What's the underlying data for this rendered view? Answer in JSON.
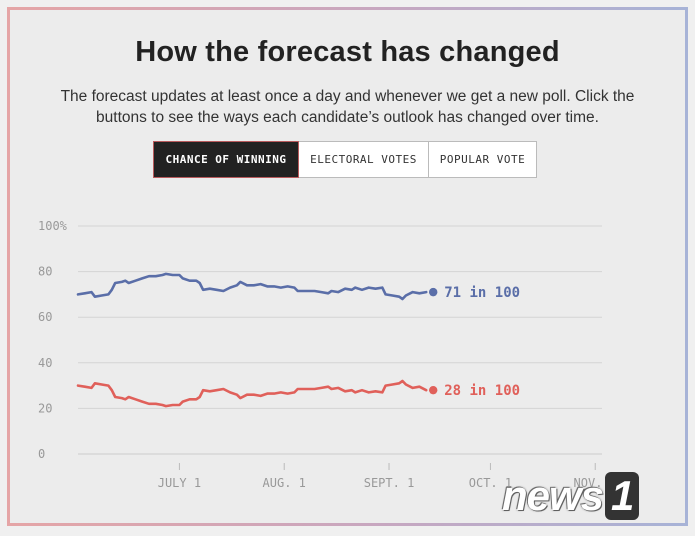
{
  "title": "How the forecast has changed",
  "subtitle": "The forecast updates at least once a day and whenever we get a new poll. Click the buttons to see the ways each candidate’s outlook has changed over time.",
  "buttons": [
    {
      "label": "CHANCE OF WINNING",
      "active": true
    },
    {
      "label": "ELECTORAL VOTES",
      "active": false
    },
    {
      "label": "POPULAR VOTE",
      "active": false
    }
  ],
  "watermark": {
    "text": "news",
    "mark": "1"
  },
  "chart_data": {
    "type": "line",
    "ylim": [
      0,
      100
    ],
    "yticks": [
      {
        "value": 100,
        "label": "100%"
      },
      {
        "value": 80,
        "label": "80"
      },
      {
        "value": 60,
        "label": "60"
      },
      {
        "value": 40,
        "label": "40"
      },
      {
        "value": 20,
        "label": "20"
      },
      {
        "value": 0,
        "label": "0"
      }
    ],
    "xlim": [
      "2020-06-01",
      "2020-11-03"
    ],
    "xticks": [
      {
        "date": "2020-07-01",
        "label": "JULY 1"
      },
      {
        "date": "2020-08-01",
        "label": "AUG. 1"
      },
      {
        "date": "2020-09-01",
        "label": "SEPT. 1"
      },
      {
        "date": "2020-10-01",
        "label": "OCT. 1"
      },
      {
        "date": "2020-11-01",
        "label": "NOV. 1"
      }
    ],
    "grid": true,
    "series": [
      {
        "color": "#5a6ea8",
        "end_label": "71 in 100",
        "points": [
          [
            "2020-06-01",
            70
          ],
          [
            "2020-06-03",
            70.5
          ],
          [
            "2020-06-05",
            71
          ],
          [
            "2020-06-06",
            69
          ],
          [
            "2020-06-08",
            69.5
          ],
          [
            "2020-06-10",
            70
          ],
          [
            "2020-06-11",
            72
          ],
          [
            "2020-06-12",
            75
          ],
          [
            "2020-06-14",
            75.5
          ],
          [
            "2020-06-15",
            76
          ],
          [
            "2020-06-16",
            75
          ],
          [
            "2020-06-18",
            76
          ],
          [
            "2020-06-20",
            77
          ],
          [
            "2020-06-22",
            78
          ],
          [
            "2020-06-24",
            78
          ],
          [
            "2020-06-26",
            78.5
          ],
          [
            "2020-06-27",
            79
          ],
          [
            "2020-06-29",
            78.5
          ],
          [
            "2020-07-01",
            78.5
          ],
          [
            "2020-07-02",
            77
          ],
          [
            "2020-07-04",
            76
          ],
          [
            "2020-07-06",
            76
          ],
          [
            "2020-07-07",
            75
          ],
          [
            "2020-07-08",
            72
          ],
          [
            "2020-07-10",
            72.5
          ],
          [
            "2020-07-12",
            72
          ],
          [
            "2020-07-14",
            71.5
          ],
          [
            "2020-07-16",
            73
          ],
          [
            "2020-07-18",
            74
          ],
          [
            "2020-07-19",
            75.5
          ],
          [
            "2020-07-21",
            74
          ],
          [
            "2020-07-23",
            74
          ],
          [
            "2020-07-25",
            74.5
          ],
          [
            "2020-07-27",
            73.5
          ],
          [
            "2020-07-29",
            73.5
          ],
          [
            "2020-07-31",
            73
          ],
          [
            "2020-08-02",
            73.5
          ],
          [
            "2020-08-04",
            73
          ],
          [
            "2020-08-05",
            71.5
          ],
          [
            "2020-08-07",
            71.5
          ],
          [
            "2020-08-10",
            71.5
          ],
          [
            "2020-08-12",
            71
          ],
          [
            "2020-08-14",
            70.5
          ],
          [
            "2020-08-15",
            71.5
          ],
          [
            "2020-08-17",
            71
          ],
          [
            "2020-08-19",
            72.5
          ],
          [
            "2020-08-21",
            72
          ],
          [
            "2020-08-22",
            73
          ],
          [
            "2020-08-24",
            72
          ],
          [
            "2020-08-26",
            73
          ],
          [
            "2020-08-28",
            72.5
          ],
          [
            "2020-08-30",
            73
          ],
          [
            "2020-08-31",
            70
          ],
          [
            "2020-09-02",
            69.5
          ],
          [
            "2020-09-04",
            69
          ],
          [
            "2020-09-05",
            68
          ],
          [
            "2020-09-06",
            69.5
          ],
          [
            "2020-09-08",
            71
          ],
          [
            "2020-09-10",
            70.5
          ],
          [
            "2020-09-12",
            71
          ]
        ]
      },
      {
        "color": "#e0605a",
        "end_label": "28 in 100",
        "points": [
          [
            "2020-06-01",
            30
          ],
          [
            "2020-06-03",
            29.5
          ],
          [
            "2020-06-05",
            29
          ],
          [
            "2020-06-06",
            31
          ],
          [
            "2020-06-08",
            30.5
          ],
          [
            "2020-06-10",
            30
          ],
          [
            "2020-06-11",
            28
          ],
          [
            "2020-06-12",
            25
          ],
          [
            "2020-06-14",
            24.5
          ],
          [
            "2020-06-15",
            24
          ],
          [
            "2020-06-16",
            25
          ],
          [
            "2020-06-18",
            24
          ],
          [
            "2020-06-20",
            23
          ],
          [
            "2020-06-22",
            22
          ],
          [
            "2020-06-24",
            22
          ],
          [
            "2020-06-26",
            21.5
          ],
          [
            "2020-06-27",
            21
          ],
          [
            "2020-06-29",
            21.5
          ],
          [
            "2020-07-01",
            21.5
          ],
          [
            "2020-07-02",
            23
          ],
          [
            "2020-07-04",
            24
          ],
          [
            "2020-07-06",
            24
          ],
          [
            "2020-07-07",
            25
          ],
          [
            "2020-07-08",
            28
          ],
          [
            "2020-07-10",
            27.5
          ],
          [
            "2020-07-12",
            28
          ],
          [
            "2020-07-14",
            28.5
          ],
          [
            "2020-07-16",
            27
          ],
          [
            "2020-07-18",
            26
          ],
          [
            "2020-07-19",
            24.5
          ],
          [
            "2020-07-21",
            26
          ],
          [
            "2020-07-23",
            26
          ],
          [
            "2020-07-25",
            25.5
          ],
          [
            "2020-07-27",
            26.5
          ],
          [
            "2020-07-29",
            26.5
          ],
          [
            "2020-07-31",
            27
          ],
          [
            "2020-08-02",
            26.5
          ],
          [
            "2020-08-04",
            27
          ],
          [
            "2020-08-05",
            28.5
          ],
          [
            "2020-08-07",
            28.5
          ],
          [
            "2020-08-10",
            28.5
          ],
          [
            "2020-08-12",
            29
          ],
          [
            "2020-08-14",
            29.5
          ],
          [
            "2020-08-15",
            28.5
          ],
          [
            "2020-08-17",
            29
          ],
          [
            "2020-08-19",
            27.5
          ],
          [
            "2020-08-21",
            28
          ],
          [
            "2020-08-22",
            27
          ],
          [
            "2020-08-24",
            28
          ],
          [
            "2020-08-26",
            27
          ],
          [
            "2020-08-28",
            27.5
          ],
          [
            "2020-08-30",
            27
          ],
          [
            "2020-08-31",
            30
          ],
          [
            "2020-09-02",
            30.5
          ],
          [
            "2020-09-04",
            31
          ],
          [
            "2020-09-05",
            32
          ],
          [
            "2020-09-06",
            30.5
          ],
          [
            "2020-09-08",
            29
          ],
          [
            "2020-09-10",
            29.5
          ],
          [
            "2020-09-12",
            28
          ]
        ]
      }
    ]
  }
}
